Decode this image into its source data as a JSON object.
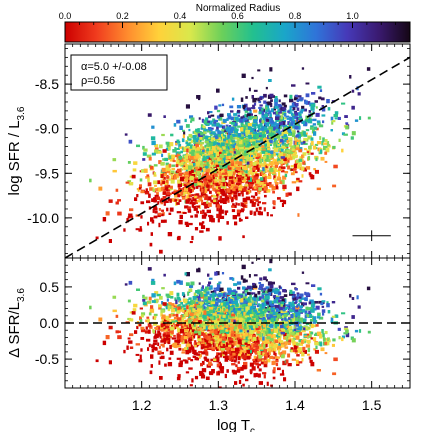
{
  "chart_data": [
    {
      "type": "scatter",
      "panel": "top",
      "ylabel": "log SFR / L",
      "ylabel_sub": "3.6",
      "xlim": [
        1.1,
        1.55
      ],
      "ylim": [
        -10.45,
        -8.05
      ],
      "yticks": [
        -8.5,
        -9.0,
        -9.5,
        -10.0
      ],
      "ytick_labels": [
        "-8.5",
        "-9.0",
        "-9.5",
        "-10.0"
      ],
      "fit_line": {
        "slope": 5.0,
        "x": [
          1.1,
          1.55
        ],
        "y": [
          -10.45,
          -8.2
        ],
        "style": "dashed"
      },
      "annotation": {
        "alpha": "α=5.0 +/-0.08",
        "rho": "ρ=0.56"
      },
      "error_bar": {
        "x": 1.5,
        "y": -10.2,
        "dx": 0.025,
        "dy": 0.06
      },
      "color_by": "Normalized Radius",
      "point_cloud": {
        "x_center": 1.32,
        "x_sd": 0.055,
        "y_model": "−9.3 + 2.7·(x−1.32)",
        "y_scatter": 0.27,
        "n_points": 3000
      }
    },
    {
      "type": "scatter",
      "panel": "bottom",
      "xlabel": "log T",
      "xlabel_sub": "c",
      "ylabel": "Δ SFR/L",
      "ylabel_sub": "3.6",
      "xlim": [
        1.1,
        1.55
      ],
      "ylim": [
        -0.9,
        0.9
      ],
      "xticks": [
        1.2,
        1.3,
        1.4,
        1.5
      ],
      "xtick_labels": [
        "1.2",
        "1.3",
        "1.4",
        "1.5"
      ],
      "yticks": [
        0.5,
        0.0,
        -0.5
      ],
      "ytick_labels": [
        "0.5",
        "0.0",
        "-0.5"
      ],
      "zero_line": {
        "y": 0.0,
        "style": "dashed"
      },
      "point_cloud": {
        "x_center": 1.32,
        "x_sd": 0.055,
        "y_scatter": 0.27,
        "n_points": 3000
      }
    }
  ],
  "colorbar": {
    "title": "Normalized Radius",
    "range": [
      0.0,
      1.2
    ],
    "ticks": [
      0.0,
      0.2,
      0.4,
      0.6,
      0.8,
      1.0
    ],
    "tick_labels": [
      "0.0",
      "0.2",
      "0.4",
      "0.6",
      "0.8",
      "1.0"
    ],
    "stops": [
      "#cc0000",
      "#f03c1e",
      "#ff8c2e",
      "#ffd23a",
      "#d9e84c",
      "#6cd05a",
      "#22c08f",
      "#1aa6c9",
      "#2f74d9",
      "#4639b8",
      "#3a1a70",
      "#150615"
    ]
  }
}
